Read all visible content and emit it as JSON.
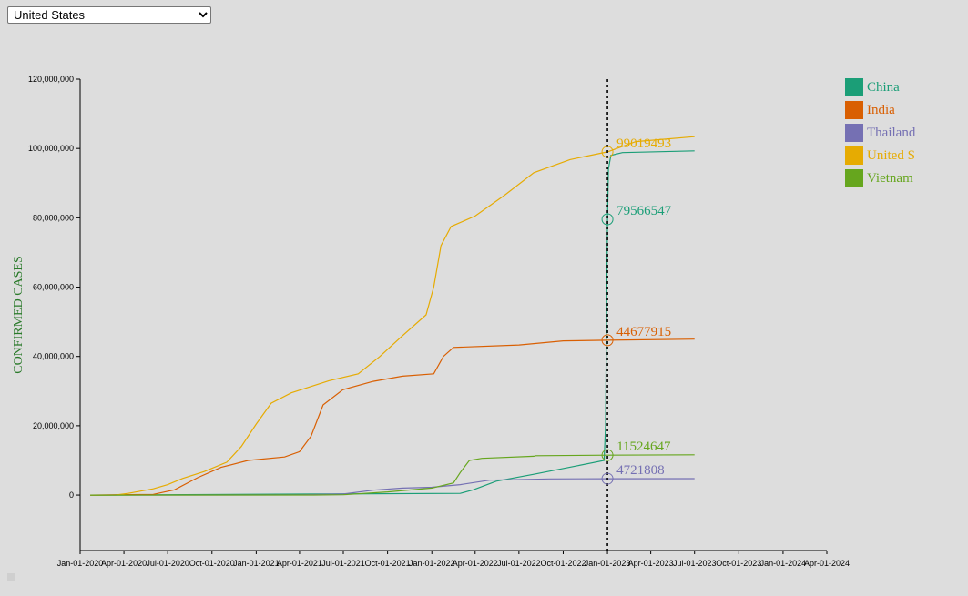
{
  "country_select": {
    "selected": "United States",
    "options": [
      "United States"
    ]
  },
  "chart_data": {
    "type": "line",
    "ylabel": "CONFIRMED CASES",
    "xlabel": "",
    "ylim": [
      -16000000,
      120000000
    ],
    "xlim": [
      "2020-01-01",
      "2024-04-01"
    ],
    "y_ticks": [
      0,
      20000000,
      40000000,
      60000000,
      80000000,
      100000000,
      120000000
    ],
    "y_tick_labels": [
      "0",
      "20,000,000",
      "40,000,000",
      "60,000,000",
      "80,000,000",
      "100,000,000",
      "120,000,000"
    ],
    "x_ticks": [
      "2020-01-01",
      "2020-04-01",
      "2020-07-01",
      "2020-10-01",
      "2021-01-01",
      "2021-04-01",
      "2021-07-01",
      "2021-10-01",
      "2022-01-01",
      "2022-04-01",
      "2022-07-01",
      "2022-10-01",
      "2023-01-01",
      "2023-04-01",
      "2023-07-01",
      "2023-10-01",
      "2024-01-01",
      "2024-04-01"
    ],
    "x_tick_labels": [
      "Jan-01-2020",
      "Apr-01-2020",
      "Jul-01-2020",
      "Oct-01-2020",
      "Jan-01-2021",
      "Apr-01-2021",
      "Jul-01-2021",
      "Oct-01-2021",
      "Jan-01-2022",
      "Apr-01-2022",
      "Jul-01-2022",
      "Oct-01-2022",
      "Jan-01-2023",
      "Apr-01-2023",
      "Jul-01-2023",
      "Oct-01-2023",
      "Jan-01-2024",
      "Apr-01-2024"
    ],
    "focus_date": "2023-01-01",
    "legend_position": "right",
    "grid": false,
    "series": [
      {
        "name": "China",
        "legend_label": "China",
        "color": "#1b9e77",
        "focus_value": 79566547,
        "points": [
          [
            "2020-01-22",
            0
          ],
          [
            "2022-03-01",
            500000
          ],
          [
            "2022-03-28",
            1500000
          ],
          [
            "2022-05-15",
            4000000
          ],
          [
            "2022-08-01",
            6000000
          ],
          [
            "2022-11-01",
            8500000
          ],
          [
            "2022-12-25",
            10000000
          ],
          [
            "2022-12-28",
            20000000
          ],
          [
            "2022-12-30",
            50000000
          ],
          [
            "2023-01-01",
            79566547
          ],
          [
            "2023-01-03",
            94000000
          ],
          [
            "2023-01-08",
            98000000
          ],
          [
            "2023-02-01",
            98800000
          ],
          [
            "2023-07-01",
            99300000
          ]
        ]
      },
      {
        "name": "India",
        "legend_label": "India",
        "color": "#d95f02",
        "focus_value": 44677915,
        "points": [
          [
            "2020-01-22",
            0
          ],
          [
            "2020-06-01",
            200000
          ],
          [
            "2020-07-15",
            1500000
          ],
          [
            "2020-09-01",
            5000000
          ],
          [
            "2020-10-20",
            8000000
          ],
          [
            "2020-12-15",
            10000000
          ],
          [
            "2021-03-01",
            11000000
          ],
          [
            "2021-04-01",
            12500000
          ],
          [
            "2021-04-25",
            17000000
          ],
          [
            "2021-05-20",
            26000000
          ],
          [
            "2021-06-30",
            30400000
          ],
          [
            "2021-09-01",
            32800000
          ],
          [
            "2021-11-01",
            34300000
          ],
          [
            "2022-01-05",
            35000000
          ],
          [
            "2022-01-25",
            40000000
          ],
          [
            "2022-02-15",
            42600000
          ],
          [
            "2022-07-01",
            43300000
          ],
          [
            "2022-10-01",
            44500000
          ],
          [
            "2023-01-01",
            44677915
          ],
          [
            "2023-07-01",
            44990000
          ]
        ]
      },
      {
        "name": "Thailand",
        "legend_label": "Thailand",
        "color": "#7570b3",
        "focus_value": 4721808,
        "points": [
          [
            "2020-01-22",
            0
          ],
          [
            "2021-04-01",
            30000
          ],
          [
            "2021-07-01",
            300000
          ],
          [
            "2021-09-01",
            1400000
          ],
          [
            "2021-11-01",
            2000000
          ],
          [
            "2022-01-01",
            2250000
          ],
          [
            "2022-03-01",
            3000000
          ],
          [
            "2022-05-01",
            4300000
          ],
          [
            "2022-09-01",
            4670000
          ],
          [
            "2023-01-01",
            4721808
          ],
          [
            "2023-07-01",
            4750000
          ]
        ]
      },
      {
        "name": "United States",
        "legend_label": "United S",
        "color": "#e6ab02",
        "focus_value": 99019493,
        "points": [
          [
            "2020-01-22",
            0
          ],
          [
            "2020-03-15",
            3000
          ],
          [
            "2020-04-10",
            500000
          ],
          [
            "2020-06-01",
            1800000
          ],
          [
            "2020-07-01",
            3000000
          ],
          [
            "2020-08-01",
            4800000
          ],
          [
            "2020-09-15",
            6800000
          ],
          [
            "2020-11-01",
            9500000
          ],
          [
            "2020-12-01",
            14000000
          ],
          [
            "2021-01-01",
            20500000
          ],
          [
            "2021-02-01",
            26500000
          ],
          [
            "2021-03-15",
            29500000
          ],
          [
            "2021-06-01",
            33000000
          ],
          [
            "2021-08-01",
            35000000
          ],
          [
            "2021-09-15",
            40000000
          ],
          [
            "2021-11-01",
            46000000
          ],
          [
            "2021-12-20",
            52000000
          ],
          [
            "2022-01-05",
            60000000
          ],
          [
            "2022-01-20",
            72000000
          ],
          [
            "2022-02-10",
            77500000
          ],
          [
            "2022-04-01",
            80500000
          ],
          [
            "2022-06-01",
            86500000
          ],
          [
            "2022-08-01",
            93000000
          ],
          [
            "2022-10-15",
            96800000
          ],
          [
            "2023-01-01",
            99019493
          ],
          [
            "2023-03-01",
            102000000
          ],
          [
            "2023-07-01",
            103400000
          ]
        ]
      },
      {
        "name": "Vietnam",
        "legend_label": "Vietnam",
        "color": "#66a61e",
        "focus_value": 11524647,
        "points": [
          [
            "2020-01-22",
            0
          ],
          [
            "2021-05-01",
            5000
          ],
          [
            "2021-07-01",
            100000
          ],
          [
            "2021-10-01",
            900000
          ],
          [
            "2022-01-01",
            2000000
          ],
          [
            "2022-02-15",
            3500000
          ],
          [
            "2022-03-01",
            6500000
          ],
          [
            "2022-03-20",
            10000000
          ],
          [
            "2022-04-15",
            10600000
          ],
          [
            "2022-08-01",
            11200000
          ],
          [
            "2022-08-05",
            11350000
          ],
          [
            "2023-01-01",
            11524647
          ],
          [
            "2023-07-01",
            11620000
          ]
        ]
      }
    ],
    "focus_labels": [
      "99019493",
      "79566547",
      "44677915",
      "11524647",
      "4721808"
    ]
  }
}
